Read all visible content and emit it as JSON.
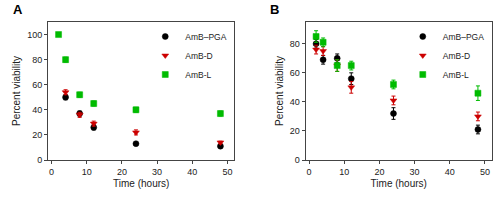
{
  "chart_data": [
    {
      "type": "scatter",
      "title": "A",
      "xlabel": "Time (hours)",
      "ylabel": "Percent viability",
      "xlim": [
        -1,
        52
      ],
      "ylim": [
        0,
        110
      ],
      "xticks": [
        0,
        10,
        20,
        30,
        40,
        50
      ],
      "yticks": [
        0,
        20,
        40,
        60,
        80,
        100
      ],
      "grid": false,
      "legend": "upper right",
      "series": [
        {
          "name": "AmB–PGA",
          "color": "#000000",
          "marker": "circle",
          "x": [
            4,
            8,
            12,
            24,
            48
          ],
          "values": [
            50,
            37,
            26,
            13,
            11
          ],
          "yerr": [
            2,
            2,
            2,
            1,
            1
          ]
        },
        {
          "name": "AmB-D",
          "color": "#cc0000",
          "marker": "triangle-down",
          "x": [
            4,
            8,
            12,
            24,
            48
          ],
          "values": [
            54,
            36,
            29,
            22,
            14
          ],
          "yerr": [
            2,
            2,
            2,
            2,
            1
          ]
        },
        {
          "name": "AmB-L",
          "color": "#00bb00",
          "marker": "square",
          "x": [
            2,
            4,
            8,
            12,
            24,
            48
          ],
          "values": [
            100,
            80,
            52,
            45,
            40,
            37
          ],
          "yerr": [
            1,
            2,
            2,
            2,
            2,
            2
          ]
        }
      ]
    },
    {
      "type": "scatter",
      "title": "B",
      "xlabel": "Time (hours)",
      "ylabel": "Percent viability",
      "xlim": [
        -1,
        52
      ],
      "ylim": [
        0,
        95
      ],
      "xticks": [
        0,
        10,
        20,
        30,
        40,
        50
      ],
      "yticks": [
        0,
        20,
        40,
        60,
        80
      ],
      "grid": false,
      "legend": "upper right",
      "series": [
        {
          "name": "AmB–PGA",
          "color": "#000000",
          "marker": "circle",
          "x": [
            2,
            4,
            8,
            12,
            24,
            48
          ],
          "values": [
            80,
            69,
            70,
            56,
            32,
            21
          ],
          "yerr": [
            3,
            3,
            3,
            4,
            4,
            3
          ]
        },
        {
          "name": "AmB-D",
          "color": "#cc0000",
          "marker": "triangle-down",
          "x": [
            2,
            4,
            8,
            12,
            24,
            48
          ],
          "values": [
            76,
            75,
            65,
            50,
            41,
            30
          ],
          "yerr": [
            3,
            3,
            4,
            4,
            3,
            3
          ]
        },
        {
          "name": "AmB-L",
          "color": "#00bb00",
          "marker": "square",
          "x": [
            2,
            4,
            8,
            12,
            24,
            48
          ],
          "values": [
            85,
            81,
            65,
            65,
            52,
            46
          ],
          "yerr": [
            4,
            3,
            4,
            3,
            3,
            5
          ]
        }
      ]
    }
  ]
}
